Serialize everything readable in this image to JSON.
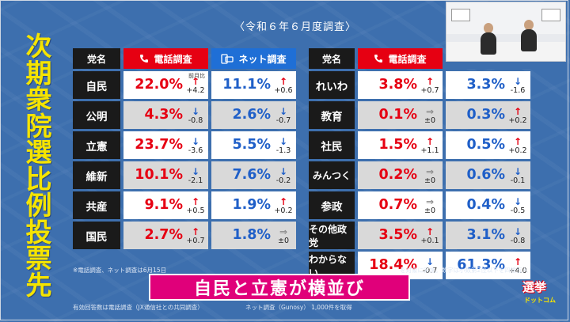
{
  "title_vertical": [
    "次",
    "期",
    "衆",
    "院",
    "選",
    "比",
    "例",
    "投",
    "票",
    "先"
  ],
  "subtitle": "〈令和６年６月度調査〉",
  "headers": {
    "party": "党名",
    "phone": "電話調査",
    "net": "ネット調査"
  },
  "prev_label": "前月比",
  "left_rows": [
    {
      "party": "自民",
      "phone": "22.0%",
      "phone_dir": "up",
      "phone_chg": "+4.2",
      "net": "11.1%",
      "net_dir": "up",
      "net_chg": "+0.6"
    },
    {
      "party": "公明",
      "phone": "4.3%",
      "phone_dir": "down",
      "phone_chg": "-0.8",
      "net": "2.6%",
      "net_dir": "down",
      "net_chg": "-0.7"
    },
    {
      "party": "立憲",
      "phone": "23.7%",
      "phone_dir": "down",
      "phone_chg": "-3.6",
      "net": "5.5%",
      "net_dir": "down",
      "net_chg": "-1.3"
    },
    {
      "party": "維新",
      "phone": "10.1%",
      "phone_dir": "down",
      "phone_chg": "-2.1",
      "net": "7.6%",
      "net_dir": "down",
      "net_chg": "-0.2"
    },
    {
      "party": "共産",
      "phone": "9.1%",
      "phone_dir": "up",
      "phone_chg": "+0.5",
      "net": "1.9%",
      "net_dir": "up",
      "net_chg": "+0.2"
    },
    {
      "party": "国民",
      "phone": "2.7%",
      "phone_dir": "up",
      "phone_chg": "+0.7",
      "net": "1.8%",
      "net_dir": "flat",
      "net_chg": "±0"
    }
  ],
  "right_rows": [
    {
      "party": "れいわ",
      "phone": "3.8%",
      "phone_dir": "up",
      "phone_chg": "+0.7",
      "net": "3.3%",
      "net_dir": "down",
      "net_chg": "-1.6"
    },
    {
      "party": "教育",
      "phone": "0.1%",
      "phone_dir": "flat",
      "phone_chg": "±0",
      "net": "0.3%",
      "net_dir": "up",
      "net_chg": "+0.2"
    },
    {
      "party": "社民",
      "phone": "1.5%",
      "phone_dir": "up",
      "phone_chg": "+1.1",
      "net": "0.5%",
      "net_dir": "up",
      "net_chg": "+0.2"
    },
    {
      "party": "みんつく",
      "phone": "0.2%",
      "phone_dir": "flat",
      "phone_chg": "±0",
      "net": "0.6%",
      "net_dir": "down",
      "net_chg": "-0.1"
    },
    {
      "party": "参政",
      "phone": "0.7%",
      "phone_dir": "flat",
      "phone_chg": "±0",
      "net": "0.4%",
      "net_dir": "down",
      "net_chg": "-0.5"
    },
    {
      "party": "その他政党",
      "phone": "3.5%",
      "phone_dir": "up",
      "phone_chg": "+0.1",
      "net": "3.1%",
      "net_dir": "down",
      "net_chg": "-0.8"
    },
    {
      "party": "わからない",
      "phone": "18.4%",
      "phone_dir": "down",
      "phone_chg": "-0.7",
      "net": "61.3%",
      "net_dir": "up",
      "net_chg": "+4.0"
    }
  ],
  "caption": "自民と立憲が横並び",
  "footnotes": [
    "※電話調査、ネット調査は6月15日",
    "を対象に実施。数字は小数第2位以下を四捨五入",
    "有効回答数は電話調査（JX通信社との共同調査）",
    "ネット調査（Gunosy） 1,000件を取得"
  ],
  "logo": {
    "line1": "選挙",
    "line2": "ドットコム"
  },
  "colors": {
    "background": "#3d6fae",
    "accent_red": "#e60012",
    "accent_blue": "#1f6fd6",
    "title_yellow": "#f5e400",
    "caption_pink": "#e0007a"
  },
  "icons": {
    "phone": "phone-icon",
    "net": "smartphone-icon",
    "up": "arrow-up-icon",
    "down": "arrow-down-icon",
    "flat": "arrow-right-icon"
  }
}
